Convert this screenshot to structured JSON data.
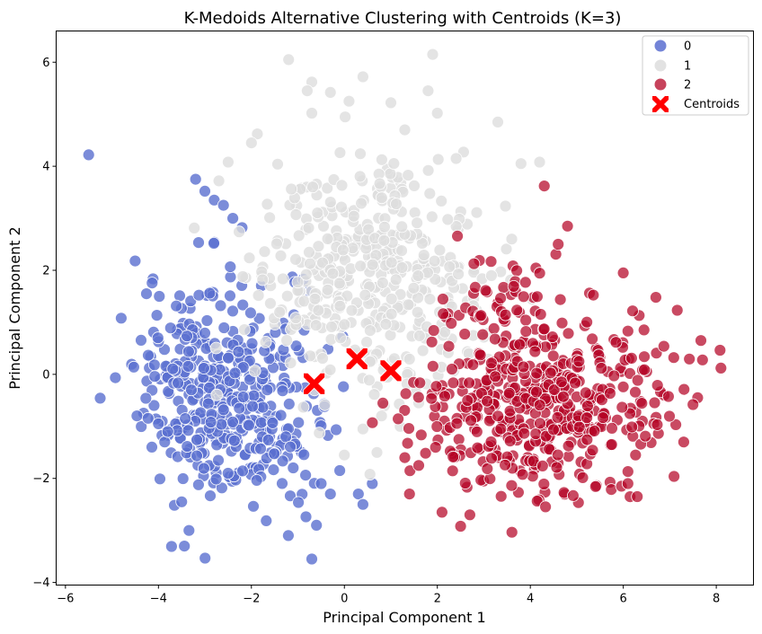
{
  "chart_data": {
    "type": "scatter",
    "title": "K-Medoids Alternative Clustering with Centroids (K=3)",
    "xlabel": "Principal Component 1",
    "ylabel": "Principal Component 2",
    "xlim": [
      -6.2,
      8.8
    ],
    "ylim": [
      -4.05,
      6.6
    ],
    "xticks": [
      -6,
      -4,
      -2,
      0,
      2,
      4,
      6,
      8
    ],
    "xtick_labels": [
      "−6",
      "−4",
      "−2",
      "0",
      "2",
      "4",
      "6",
      "8"
    ],
    "yticks": [
      -4,
      -2,
      0,
      2,
      4,
      6
    ],
    "ytick_labels": [
      "−4",
      "−2",
      "0",
      "2",
      "4",
      "6"
    ],
    "grid": false,
    "legend_position": "top-right",
    "series": [
      {
        "name": "0",
        "color": "#5a6fd0",
        "clusters": [
          {
            "cx": -2.8,
            "cy": -0.3,
            "sx": 0.8,
            "sy": 1.05,
            "n": 330
          },
          {
            "cx": -1.5,
            "cy": -0.8,
            "sx": 0.6,
            "sy": 0.9,
            "n": 100
          }
        ],
        "extra_points": [
          [
            -5.5,
            4.22
          ],
          [
            -4.5,
            2.18
          ],
          [
            -4.8,
            1.08
          ],
          [
            -3.2,
            3.75
          ],
          [
            -3.0,
            3.52
          ],
          [
            -2.8,
            3.35
          ],
          [
            -2.6,
            3.25
          ],
          [
            -2.4,
            3.0
          ],
          [
            -2.2,
            2.82
          ],
          [
            -3.5,
            -2.45
          ],
          [
            -3.8,
            -1.1
          ],
          [
            -4.0,
            -0.95
          ],
          [
            -0.7,
            -3.55
          ],
          [
            -0.6,
            -2.9
          ],
          [
            -0.3,
            -2.3
          ],
          [
            -0.5,
            -2.1
          ],
          [
            0.3,
            -2.3
          ],
          [
            0.4,
            -2.5
          ],
          [
            0.6,
            -2.1
          ],
          [
            -0.1,
            -1.85
          ]
        ]
      },
      {
        "name": "1",
        "color": "#dddddd",
        "clusters": [
          {
            "cx": 0.5,
            "cy": 1.7,
            "sx": 1.35,
            "sy": 1.0,
            "n": 360
          },
          {
            "cx": 0.5,
            "cy": 3.2,
            "sx": 1.0,
            "sy": 0.9,
            "n": 70
          }
        ],
        "extra_points": [
          [
            -1.2,
            6.05
          ],
          [
            -0.7,
            5.62
          ],
          [
            -0.3,
            5.42
          ],
          [
            0.4,
            5.72
          ],
          [
            0.1,
            5.25
          ],
          [
            1.0,
            5.22
          ],
          [
            1.9,
            6.15
          ],
          [
            1.8,
            5.45
          ],
          [
            2.0,
            5.02
          ],
          [
            3.3,
            4.85
          ],
          [
            -0.8,
            5.45
          ],
          [
            -2.0,
            4.45
          ],
          [
            -2.5,
            4.08
          ],
          [
            -2.7,
            3.72
          ],
          [
            1.3,
            4.7
          ],
          [
            0.8,
            -0.8
          ],
          [
            1.2,
            -1.0
          ],
          [
            1.6,
            -0.55
          ],
          [
            0.4,
            -1.05
          ],
          [
            0.0,
            -1.55
          ],
          [
            0.7,
            -1.5
          ],
          [
            0.55,
            -1.92
          ],
          [
            3.8,
            4.05
          ],
          [
            4.2,
            4.08
          ],
          [
            3.6,
            2.6
          ]
        ]
      },
      {
        "name": "2",
        "color": "#b40426",
        "clusters": [
          {
            "cx": 3.9,
            "cy": -0.7,
            "sx": 1.1,
            "sy": 0.85,
            "n": 330
          },
          {
            "cx": 5.5,
            "cy": -0.4,
            "sx": 0.85,
            "sy": 0.8,
            "n": 110
          },
          {
            "cx": 3.6,
            "cy": 1.1,
            "sx": 0.7,
            "sy": 0.6,
            "n": 60
          }
        ],
        "extra_points": [
          [
            4.3,
            3.62
          ],
          [
            4.8,
            2.85
          ],
          [
            4.6,
            2.5
          ],
          [
            6.0,
            1.95
          ],
          [
            6.7,
            1.48
          ],
          [
            6.2,
            1.22
          ],
          [
            8.1,
            0.12
          ],
          [
            7.6,
            -0.45
          ],
          [
            7.5,
            -0.58
          ],
          [
            7.3,
            -1.3
          ],
          [
            6.3,
            -2.35
          ],
          [
            6.1,
            -2.1
          ],
          [
            2.7,
            -2.7
          ],
          [
            2.5,
            -2.92
          ],
          [
            1.4,
            -2.3
          ],
          [
            2.1,
            -2.65
          ],
          [
            1.3,
            -1.6
          ],
          [
            1.6,
            -1.75
          ]
        ]
      }
    ],
    "centroids": {
      "name": "Centroids",
      "color": "#ff0000",
      "marker": "X",
      "points": [
        [
          -0.65,
          -0.18
        ],
        [
          0.27,
          0.3
        ],
        [
          1.0,
          0.07
        ]
      ]
    }
  }
}
